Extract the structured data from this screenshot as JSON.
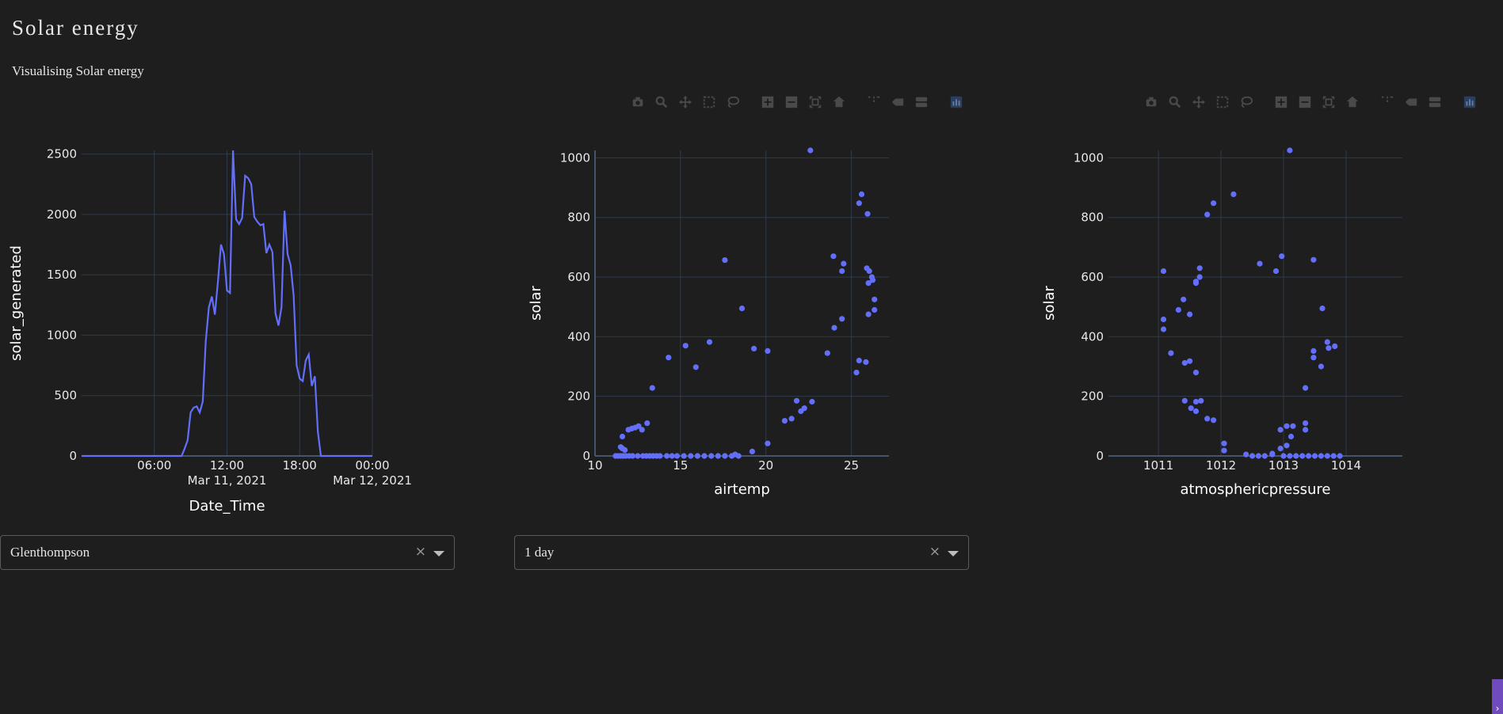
{
  "header": {
    "title": "Solar energy",
    "subtitle": "Visualising Solar energy"
  },
  "modebar": {
    "icons": [
      "camera-icon",
      "zoom-icon",
      "pan-icon",
      "box-select-icon",
      "lasso-icon",
      "zoom-in-icon",
      "zoom-out-icon",
      "autoscale-icon",
      "reset-axes-icon",
      "spike-lines-icon",
      "hover-closest-icon",
      "hover-compare-icon",
      "plotly-logo-icon"
    ]
  },
  "dropdowns": {
    "location": {
      "value": "Glenthompson",
      "clear": "×"
    },
    "period": {
      "value": "1 day",
      "clear": "×"
    }
  },
  "scroll_glyph": "›",
  "colors": {
    "series": "#636efa",
    "grid": "#2f3a4a",
    "background": "#1e1e1e"
  },
  "chart_data": [
    {
      "type": "line",
      "xlabel": "Date_Time",
      "ylabel": "solar_generated",
      "x_tick_labels": [
        [
          "06:00",
          ""
        ],
        [
          "12:00",
          "Mar 11, 2021"
        ],
        [
          "18:00",
          ""
        ],
        [
          "00:00",
          "Mar 12, 2021"
        ]
      ],
      "x_ticks_hours": [
        6,
        12,
        18,
        24
      ],
      "y_ticks": [
        0,
        500,
        1000,
        1500,
        2000,
        2500
      ],
      "xlim_hours": [
        0,
        24
      ],
      "ylim": [
        0,
        2530
      ],
      "x_hours": [
        0,
        1,
        2,
        3,
        4,
        5,
        6,
        6.5,
        7,
        7.25,
        7.5,
        7.75,
        8,
        8.25,
        8.5,
        8.75,
        9,
        9.25,
        9.5,
        9.75,
        10,
        10.25,
        10.5,
        10.75,
        11,
        11.25,
        11.5,
        11.75,
        12,
        12.25,
        12.5,
        12.75,
        13,
        13.25,
        13.5,
        13.75,
        14,
        14.25,
        14.5,
        14.75,
        15,
        15.25,
        15.5,
        15.75,
        16,
        16.25,
        16.5,
        16.75,
        17,
        17.25,
        17.5,
        17.75,
        18,
        18.25,
        18.5,
        18.75,
        19,
        19.25,
        19.5,
        19.75,
        20,
        21,
        22,
        23,
        24
      ],
      "y": [
        0,
        0,
        0,
        0,
        0,
        0,
        0,
        0,
        0,
        0,
        0,
        0,
        0,
        0,
        60,
        130,
        360,
        400,
        410,
        360,
        450,
        950,
        1230,
        1320,
        1170,
        1440,
        1750,
        1670,
        1370,
        1350,
        2530,
        1960,
        1920,
        1970,
        2320,
        2300,
        2250,
        1980,
        1940,
        1910,
        1920,
        1680,
        1750,
        1690,
        1180,
        1080,
        1230,
        2030,
        1670,
        1580,
        1330,
        750,
        640,
        620,
        790,
        840,
        580,
        660,
        200,
        0,
        0,
        0,
        0,
        0,
        0
      ]
    },
    {
      "type": "scatter",
      "xlabel": "airtemp",
      "ylabel": "solar",
      "x_ticks": [
        10,
        15,
        20,
        25
      ],
      "y_ticks": [
        0,
        200,
        400,
        600,
        800,
        1000
      ],
      "xlim": [
        10,
        27.2
      ],
      "ylim": [
        0,
        1025
      ],
      "points": [
        [
          11.2,
          0
        ],
        [
          11.35,
          0
        ],
        [
          11.5,
          0
        ],
        [
          11.65,
          0
        ],
        [
          11.8,
          0
        ],
        [
          12.0,
          0
        ],
        [
          12.2,
          0
        ],
        [
          12.5,
          0
        ],
        [
          12.8,
          0
        ],
        [
          13.0,
          0
        ],
        [
          13.2,
          0
        ],
        [
          13.4,
          0
        ],
        [
          13.6,
          0
        ],
        [
          13.8,
          0
        ],
        [
          14.2,
          0
        ],
        [
          14.5,
          0
        ],
        [
          14.8,
          0
        ],
        [
          15.2,
          0
        ],
        [
          15.6,
          0
        ],
        [
          16.0,
          0
        ],
        [
          16.4,
          0
        ],
        [
          16.8,
          0
        ],
        [
          17.2,
          0
        ],
        [
          17.6,
          0
        ],
        [
          18.0,
          0
        ],
        [
          18.4,
          0
        ],
        [
          18.2,
          5
        ],
        [
          19.2,
          15
        ],
        [
          11.5,
          30
        ],
        [
          11.6,
          25
        ],
        [
          11.75,
          20
        ],
        [
          11.6,
          65
        ],
        [
          11.95,
          88
        ],
        [
          12.15,
          92
        ],
        [
          12.35,
          95
        ],
        [
          12.55,
          100
        ],
        [
          12.75,
          88
        ],
        [
          13.05,
          110
        ],
        [
          13.35,
          228
        ],
        [
          14.3,
          330
        ],
        [
          15.3,
          370
        ],
        [
          15.9,
          298
        ],
        [
          16.7,
          382
        ],
        [
          17.6,
          657
        ],
        [
          18.6,
          495
        ],
        [
          19.3,
          360
        ],
        [
          20.1,
          352
        ],
        [
          20.1,
          42
        ],
        [
          21.1,
          118
        ],
        [
          21.5,
          125
        ],
        [
          21.8,
          185
        ],
        [
          22.05,
          150
        ],
        [
          22.25,
          160
        ],
        [
          22.7,
          182
        ],
        [
          22.6,
          1025
        ],
        [
          23.6,
          345
        ],
        [
          24.0,
          430
        ],
        [
          24.45,
          460
        ],
        [
          23.95,
          670
        ],
        [
          24.45,
          620
        ],
        [
          24.55,
          645
        ],
        [
          25.3,
          280
        ],
        [
          25.45,
          320
        ],
        [
          25.85,
          315
        ],
        [
          25.45,
          848
        ],
        [
          25.6,
          878
        ],
        [
          25.95,
          812
        ],
        [
          25.9,
          630
        ],
        [
          26.05,
          620
        ],
        [
          26.2,
          600
        ],
        [
          26.0,
          580
        ],
        [
          26.25,
          590
        ],
        [
          26.0,
          475
        ],
        [
          26.35,
          525
        ],
        [
          26.35,
          490
        ]
      ]
    },
    {
      "type": "scatter",
      "xlabel": "atmosphericpressure",
      "ylabel": "solar",
      "x_ticks": [
        1011,
        1012,
        1013,
        1014
      ],
      "y_ticks": [
        0,
        200,
        400,
        600,
        800,
        1000
      ],
      "xlim": [
        1010.2,
        1014.9
      ],
      "ylim": [
        0,
        1025
      ],
      "points": [
        [
          1011.08,
          620
        ],
        [
          1011.08,
          458
        ],
        [
          1011.08,
          425
        ],
        [
          1011.2,
          345
        ],
        [
          1011.32,
          490
        ],
        [
          1011.4,
          525
        ],
        [
          1011.42,
          312
        ],
        [
          1011.5,
          318
        ],
        [
          1011.5,
          475
        ],
        [
          1011.42,
          185
        ],
        [
          1011.52,
          160
        ],
        [
          1011.6,
          150
        ],
        [
          1011.6,
          585
        ],
        [
          1011.6,
          580
        ],
        [
          1011.66,
          600
        ],
        [
          1011.66,
          630
        ],
        [
          1011.6,
          280
        ],
        [
          1011.6,
          182
        ],
        [
          1011.68,
          185
        ],
        [
          1011.78,
          125
        ],
        [
          1011.88,
          120
        ],
        [
          1011.78,
          810
        ],
        [
          1011.88,
          848
        ],
        [
          1012.05,
          42
        ],
        [
          1012.05,
          18
        ],
        [
          1012.2,
          878
        ],
        [
          1012.4,
          5
        ],
        [
          1012.5,
          0
        ],
        [
          1012.6,
          0
        ],
        [
          1012.7,
          0
        ],
        [
          1012.82,
          5
        ],
        [
          1012.82,
          8
        ],
        [
          1012.62,
          645
        ],
        [
          1012.88,
          620
        ],
        [
          1012.97,
          670
        ],
        [
          1012.95,
          88
        ],
        [
          1012.95,
          25
        ],
        [
          1013.05,
          100
        ],
        [
          1013.05,
          35
        ],
        [
          1013.12,
          65
        ],
        [
          1013.15,
          100
        ],
        [
          1013.1,
          1025
        ],
        [
          1013.0,
          0
        ],
        [
          1013.1,
          0
        ],
        [
          1013.2,
          0
        ],
        [
          1013.3,
          0
        ],
        [
          1013.4,
          0
        ],
        [
          1013.5,
          0
        ],
        [
          1013.6,
          0
        ],
        [
          1013.7,
          0
        ],
        [
          1013.8,
          0
        ],
        [
          1013.9,
          0
        ],
        [
          1013.35,
          110
        ],
        [
          1013.35,
          88
        ],
        [
          1013.35,
          228
        ],
        [
          1013.48,
          352
        ],
        [
          1013.48,
          330
        ],
        [
          1013.48,
          658
        ],
        [
          1013.6,
          300
        ],
        [
          1013.62,
          495
        ],
        [
          1013.7,
          382
        ],
        [
          1013.72,
          362
        ],
        [
          1013.82,
          368
        ]
      ]
    }
  ]
}
